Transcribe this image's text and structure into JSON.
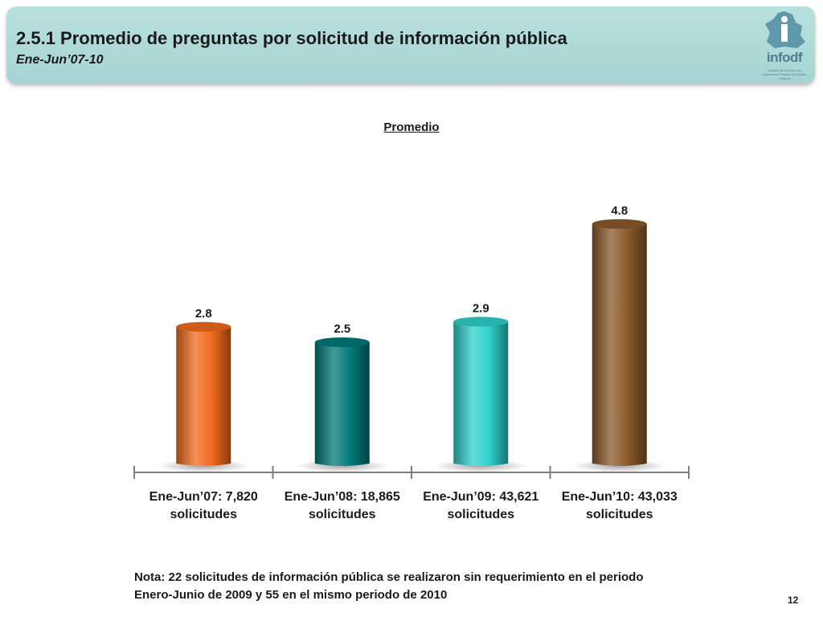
{
  "header": {
    "title": "2.5.1 Promedio de preguntas por solicitud de información pública",
    "subtitle": "Ene-Jun’07-10"
  },
  "logo": {
    "text": "infodf",
    "caption": "Instituto de Acceso a la Información Pública del Distrito Federal",
    "icon": "map-icon"
  },
  "chart_data": {
    "type": "bar",
    "title": "Promedio",
    "categories": [
      "Ene-Jun’07: 7,820 solicitudes",
      "Ene-Jun’08: 18,865 solicitudes",
      "Ene-Jun’09: 43,621 solicitudes",
      "Ene-Jun’10: 43,033 solicitudes"
    ],
    "category_lines": [
      [
        "Ene-Jun’07: 7,820",
        "solicitudes"
      ],
      [
        "Ene-Jun’08: 18,865",
        "solicitudes"
      ],
      [
        "Ene-Jun’09: 43,621",
        "solicitudes"
      ],
      [
        "Ene-Jun’10: 43,033",
        "solicitudes"
      ]
    ],
    "values": [
      2.8,
      2.5,
      2.9,
      4.8
    ],
    "data_labels": [
      "2.8",
      "2.5",
      "2.9",
      "4.8"
    ],
    "bar_colors": [
      "#f26b1d",
      "#007a78",
      "#2ed1cc",
      "#8c5a2b"
    ],
    "xlabel": "",
    "ylabel": "",
    "ylim": [
      0,
      5
    ],
    "grid": false,
    "legend": "none"
  },
  "note": {
    "line1": "Nota: 22 solicitudes de información pública se realizaron sin requerimiento en el periodo",
    "line2": "Enero-Junio de 2009 y 55 en el mismo periodo de 2010"
  },
  "page_number": "12"
}
